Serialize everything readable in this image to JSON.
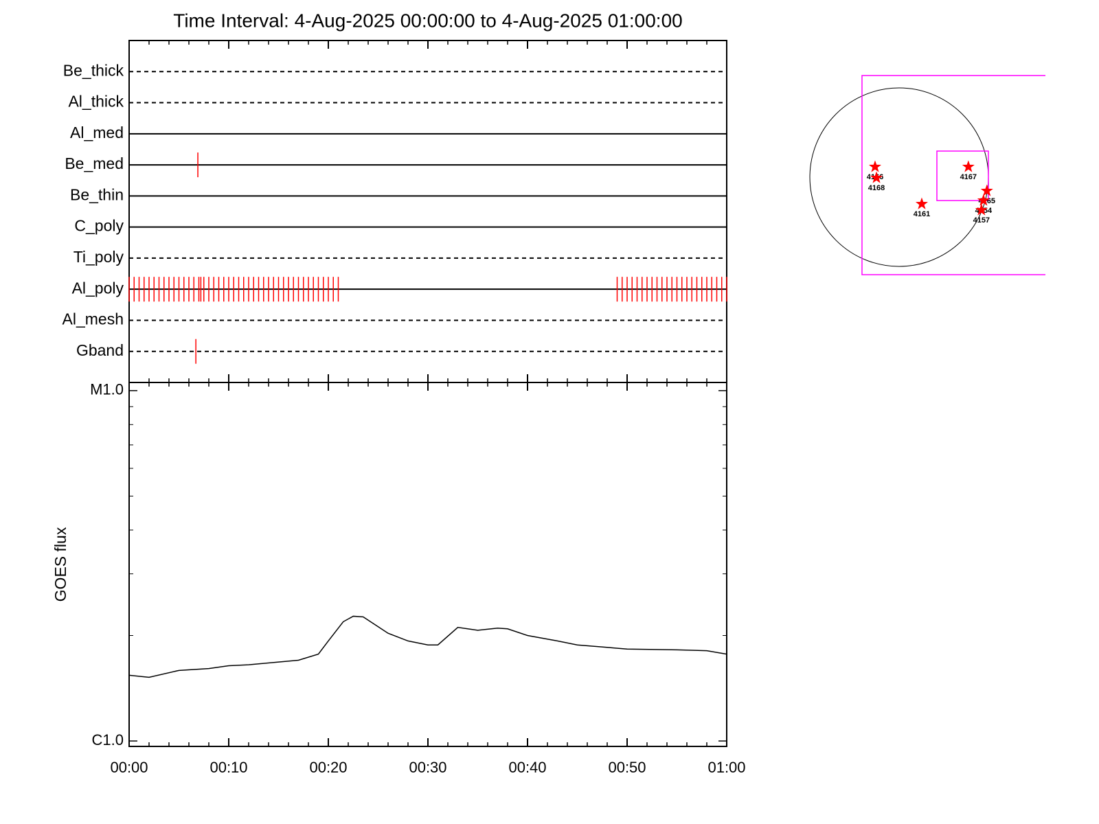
{
  "chart_data": [
    {
      "type": "timeline",
      "title": "Time Interval:  4-Aug-2025 00:00:00 to  4-Aug-2025 01:00:00",
      "xlim": [
        0,
        60
      ],
      "xticks": [
        {
          "value": 0,
          "label": "00:00"
        },
        {
          "value": 10,
          "label": "00:10"
        },
        {
          "value": 20,
          "label": "00:20"
        },
        {
          "value": 30,
          "label": "00:30"
        },
        {
          "value": 40,
          "label": "00:40"
        },
        {
          "value": 50,
          "label": "00:50"
        },
        {
          "value": 60,
          "label": "01:00"
        }
      ],
      "xminor": [
        2,
        4,
        6,
        8,
        12,
        14,
        16,
        18,
        22,
        24,
        26,
        28,
        32,
        34,
        36,
        38,
        42,
        44,
        46,
        48,
        52,
        54,
        56,
        58
      ],
      "exposure_color": "#ff0000",
      "rows": [
        {
          "name": "Be_thick",
          "style": "dashed",
          "exposures": []
        },
        {
          "name": "Al_thick",
          "style": "dashed",
          "exposures": []
        },
        {
          "name": "Al_med",
          "style": "solid",
          "exposures": []
        },
        {
          "name": "Be_med",
          "style": "solid",
          "exposures": [
            6.9
          ]
        },
        {
          "name": "Be_thin",
          "style": "solid",
          "exposures": []
        },
        {
          "name": "C_poly",
          "style": "solid",
          "exposures": []
        },
        {
          "name": "Ti_poly",
          "style": "dashed",
          "exposures": []
        },
        {
          "name": "Al_poly",
          "style": "solid",
          "exposures": [
            0,
            0.5,
            1,
            1.5,
            2,
            2.5,
            3,
            3.5,
            4,
            4.5,
            5,
            5.5,
            6,
            6.5,
            7,
            7.2,
            7.5,
            8,
            8.5,
            9,
            9.5,
            10,
            10.5,
            11,
            11.5,
            12,
            12.5,
            13,
            13.5,
            14,
            14.5,
            15,
            15.5,
            16,
            16.5,
            17,
            17.5,
            18,
            18.5,
            19,
            19.5,
            20,
            20.5,
            21,
            49,
            49.5,
            50,
            50.5,
            51,
            51.5,
            52,
            52.5,
            53,
            53.5,
            54,
            54.5,
            55,
            55.5,
            56,
            56.5,
            57,
            57.5,
            58,
            58.5,
            59,
            59.5,
            60
          ]
        },
        {
          "name": "Al_mesh",
          "style": "dashed",
          "exposures": []
        },
        {
          "name": "Gband",
          "style": "dashed",
          "exposures": [
            6.7
          ]
        }
      ]
    },
    {
      "type": "line",
      "ylabel": "GOES flux",
      "log_scale": true,
      "color": "#000000",
      "xlim": [
        0,
        60
      ],
      "xticks": [
        {
          "value": 0,
          "label": "00:00"
        },
        {
          "value": 10,
          "label": "00:10"
        },
        {
          "value": 20,
          "label": "00:20"
        },
        {
          "value": 30,
          "label": "00:30"
        },
        {
          "value": 40,
          "label": "00:40"
        },
        {
          "value": 50,
          "label": "00:50"
        },
        {
          "value": 60,
          "label": "01:00"
        }
      ],
      "xminor": [
        2,
        4,
        6,
        8,
        12,
        14,
        16,
        18,
        22,
        24,
        26,
        28,
        32,
        34,
        36,
        38,
        42,
        44,
        46,
        48,
        52,
        54,
        56,
        58
      ],
      "ylim": [
        9.65e-07,
        1.055e-05
      ],
      "yticks": [
        {
          "value": 1e-06,
          "label": "C1.0"
        },
        {
          "value": 1e-05,
          "label": "M1.0"
        }
      ],
      "yminor": [
        2e-06,
        3e-06,
        4e-06,
        5e-06,
        6e-06,
        7e-06,
        8e-06,
        9e-06
      ],
      "x": [
        0,
        2,
        5,
        8,
        10,
        12,
        15,
        17,
        19,
        20,
        21.5,
        22.5,
        23.5,
        26,
        28,
        30,
        31,
        33,
        35,
        37,
        38,
        40,
        43,
        45,
        50,
        55,
        58,
        60
      ],
      "values": [
        1.54e-06,
        1.52e-06,
        1.59e-06,
        1.61e-06,
        1.64e-06,
        1.65e-06,
        1.68e-06,
        1.7e-06,
        1.77e-06,
        1.93e-06,
        2.19e-06,
        2.27e-06,
        2.26e-06,
        2.03e-06,
        1.93e-06,
        1.88e-06,
        1.88e-06,
        2.11e-06,
        2.07e-06,
        2.1e-06,
        2.09e-06,
        2e-06,
        1.93e-06,
        1.88e-06,
        1.83e-06,
        1.82e-06,
        1.81e-06,
        1.77e-06
      ]
    },
    {
      "type": "solar_map",
      "xlim": [
        -1016,
        1557
      ],
      "ylim": [
        -1040,
        1082
      ],
      "radius": 950,
      "color": "#ff0000",
      "fov_color": "#ff00ff",
      "fov": [
        {
          "x0": -395,
          "x1": 1700,
          "y0": -1038,
          "y1": 1082
        },
        {
          "x0": 402,
          "x1": 950,
          "y0": -249,
          "y1": 278
        }
      ],
      "regions": [
        {
          "name": "4166",
          "x": -256,
          "y": 110
        },
        {
          "name": "4168",
          "x": -241,
          "y": -7
        },
        {
          "name": "4167",
          "x": 737,
          "y": 110
        },
        {
          "name": "4165",
          "x": 934,
          "y": -146
        },
        {
          "name": "4154",
          "x": 898,
          "y": -248
        },
        {
          "name": "4157",
          "x": 876,
          "y": -350
        },
        {
          "name": "4161",
          "x": 241,
          "y": -285
        }
      ]
    }
  ]
}
